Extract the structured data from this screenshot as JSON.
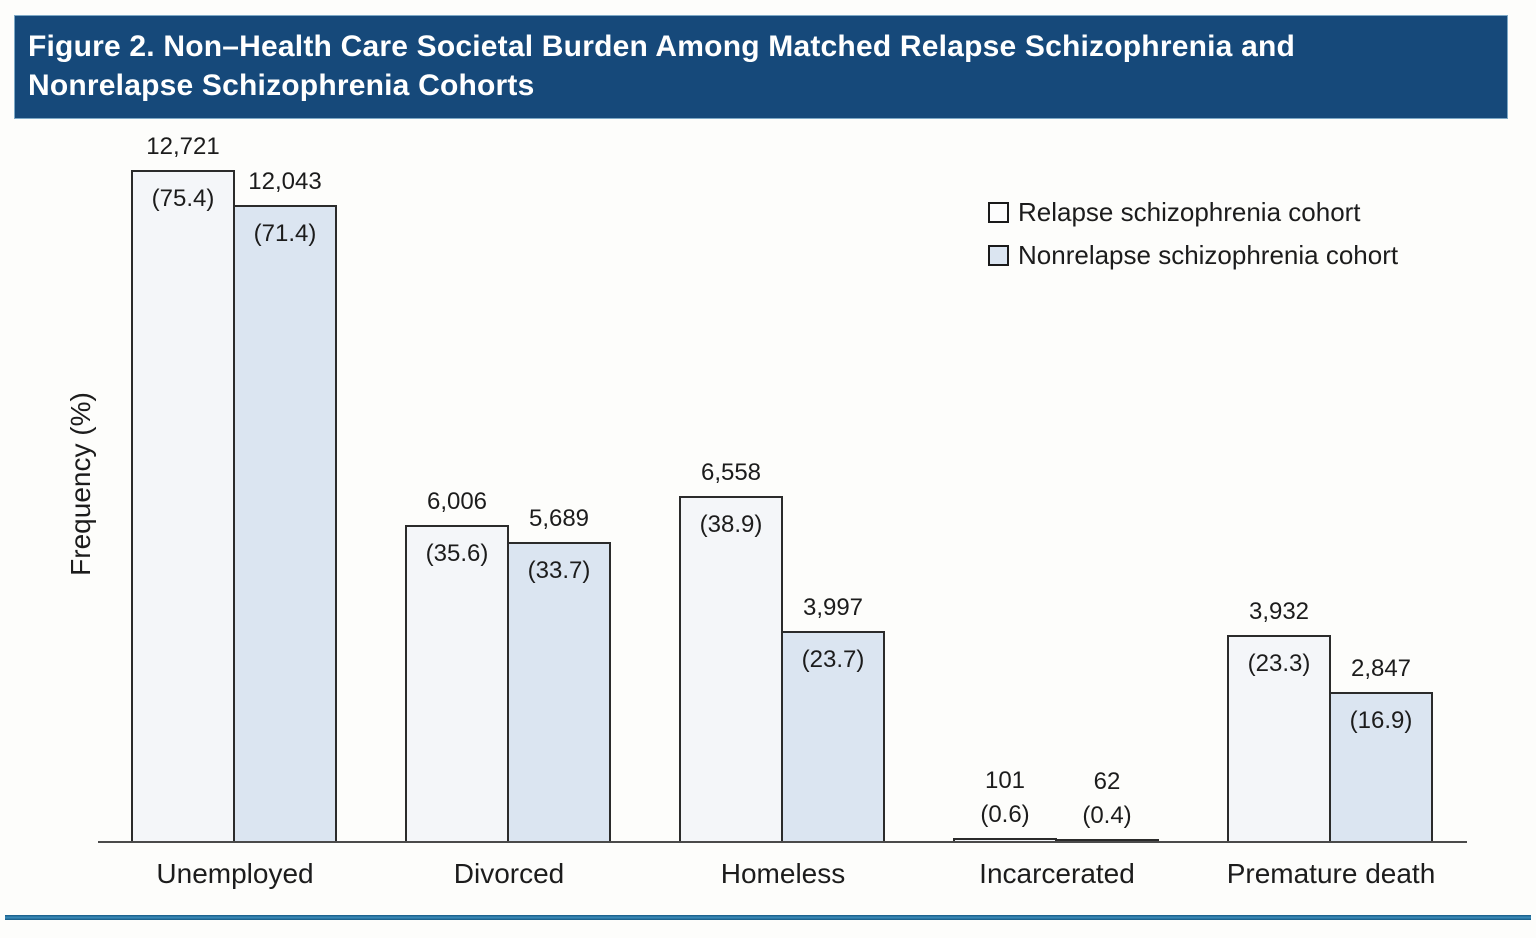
{
  "figure": {
    "title_lines": [
      "Figure 2. Non–Health Care Societal Burden Among Matched Relapse Schizophrenia and",
      "Nonrelapse Schizophrenia Cohorts"
    ],
    "title_bar_color": "#16497a",
    "bottom_rule_color": "#2173a6"
  },
  "chart_data": {
    "type": "bar",
    "title": "Non–Health Care Societal Burden Among Matched Relapse Schizophrenia and Nonrelapse Schizophrenia Cohorts",
    "ylabel": "Frequency (%)",
    "xlabel": "",
    "categories": [
      "Unemployed",
      "Divorced",
      "Homeless",
      "Incarcerated",
      "Premature death"
    ],
    "series": [
      {
        "name": "Relapse schizophrenia cohort",
        "fill": "#f4f6f9",
        "legend_fill": "#fdfdfd",
        "counts": [
          12721,
          6006,
          6558,
          101,
          3932
        ],
        "counts_display": [
          "12,721",
          "6,006",
          "6,558",
          "101",
          "3,932"
        ],
        "percents": [
          75.4,
          35.6,
          38.9,
          0.6,
          23.3
        ],
        "percents_display": [
          "(75.4)",
          "(35.6)",
          "(38.9)",
          "(0.6)",
          "(23.3)"
        ]
      },
      {
        "name": "Nonrelapse schizophrenia cohort",
        "fill": "#dbe5f1",
        "legend_fill": "#dbe5f1",
        "counts": [
          12043,
          5689,
          3997,
          62,
          2847
        ],
        "counts_display": [
          "12,043",
          "5,689",
          "3,997",
          "62",
          "2,847"
        ],
        "percents": [
          71.4,
          33.7,
          23.7,
          0.4,
          16.9
        ],
        "percents_display": [
          "(71.4)",
          "(33.7)",
          "(23.7)",
          "(0.4)",
          "(16.9)"
        ]
      }
    ],
    "grid": false,
    "y_axis_ticks": [],
    "ylim": [
      0,
      80
    ],
    "legend_position": "top-right",
    "bar_border_color": "#2b2b2b"
  }
}
